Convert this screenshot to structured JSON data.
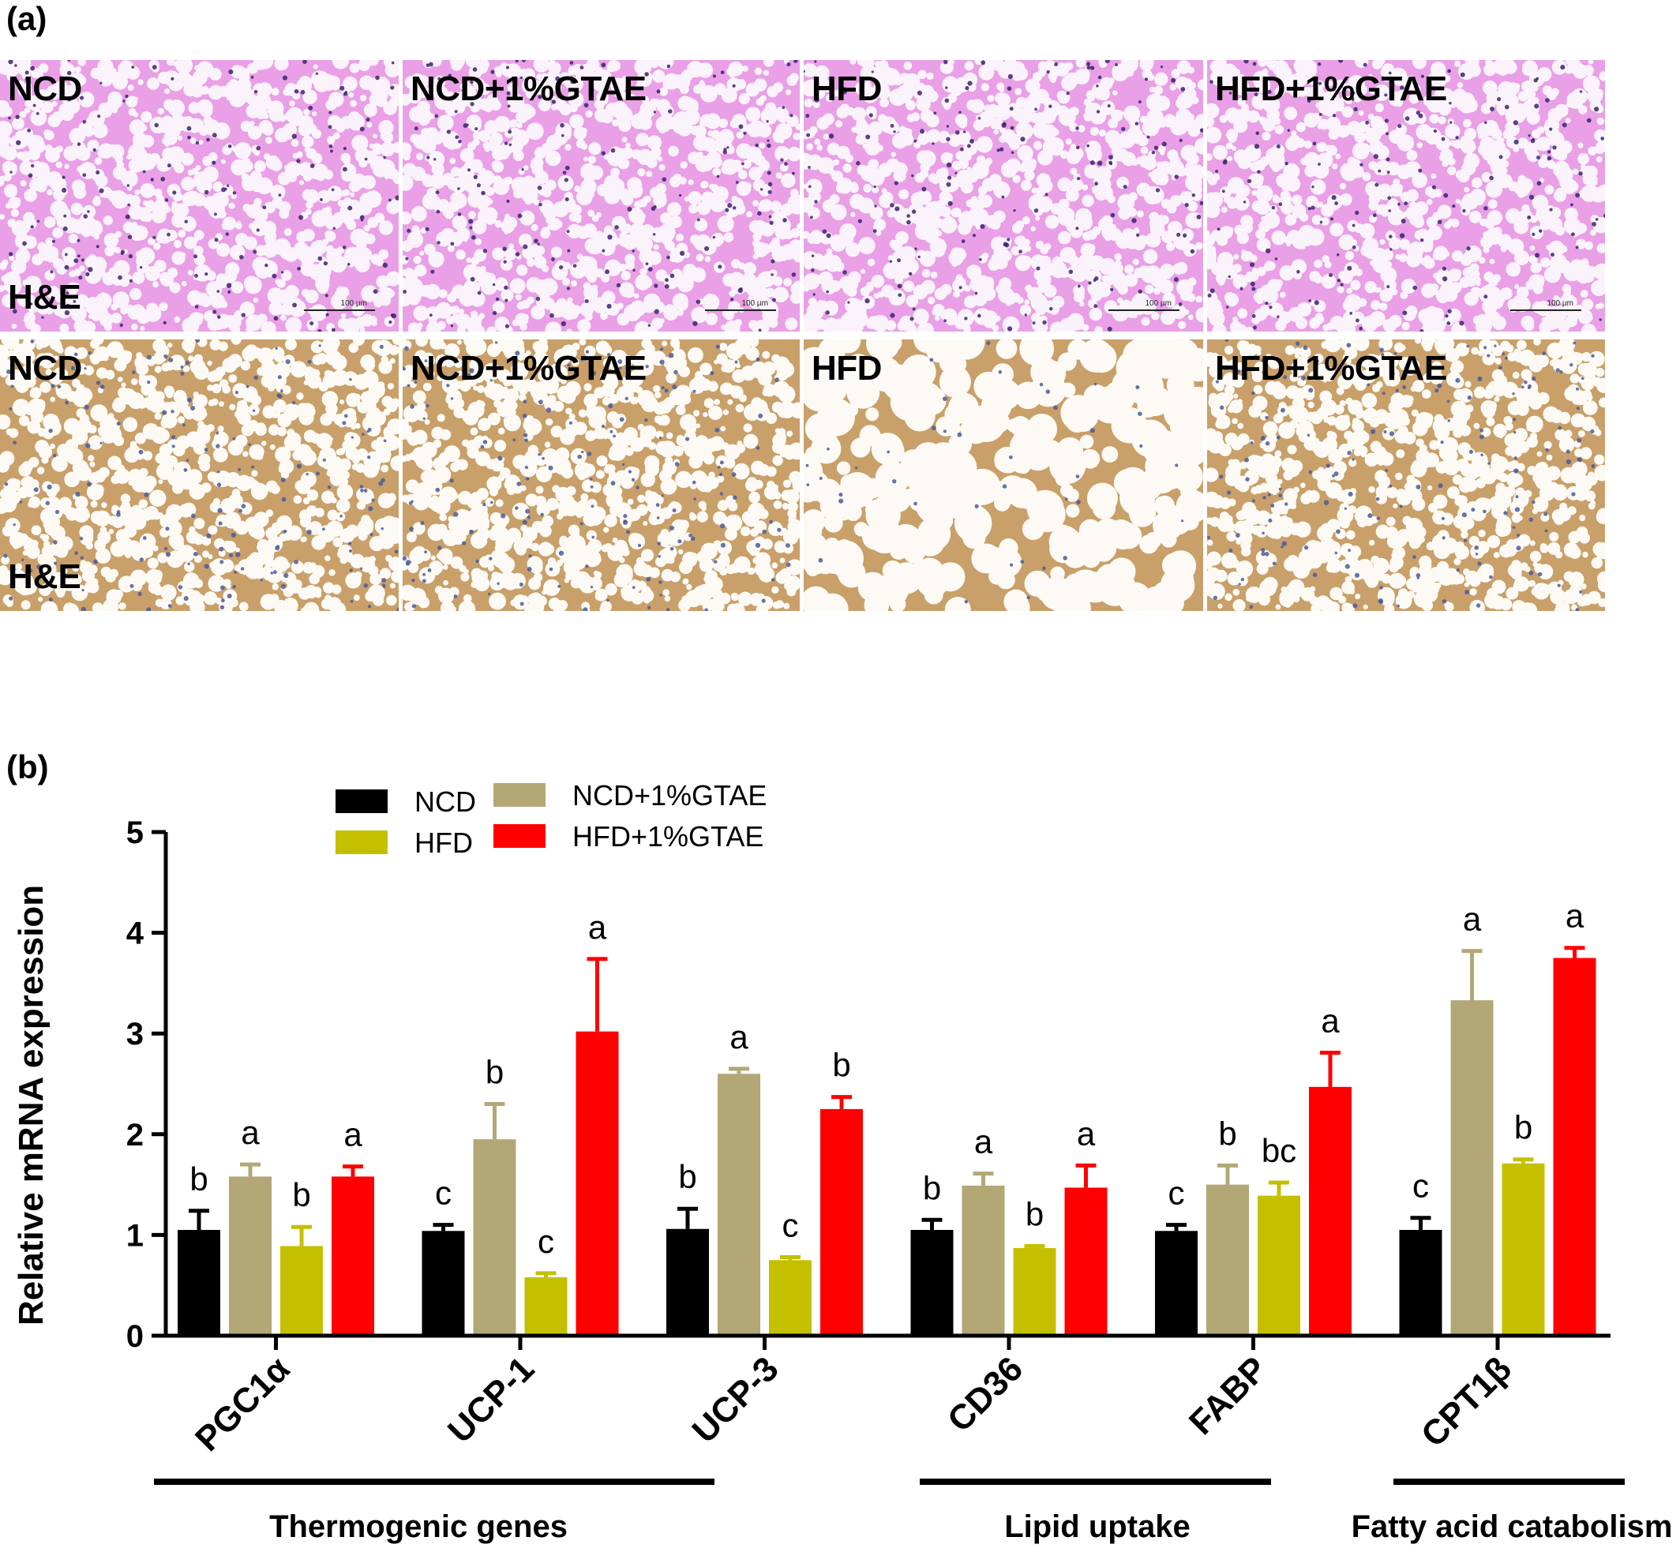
{
  "panel_a": {
    "label": "(a)",
    "rows": [
      {
        "stain": "H&E",
        "tint": "#e9a0e6",
        "cell_fill": "#fbf3fb",
        "nucleus": "#3a2270",
        "groups": [
          "NCD",
          "NCD+1%GTAE",
          "HFD",
          "HFD+1%GTAE"
        ],
        "scale_label": "100 µm"
      },
      {
        "stain": "H&E",
        "tint": "#c9a06a",
        "cell_fill": "#fdfaf5",
        "nucleus": "#4a5a9a",
        "groups": [
          "NCD",
          "NCD+1%GTAE",
          "HFD",
          "HFD+1%GTAE"
        ],
        "scale_label": ""
      }
    ]
  },
  "panel_b": {
    "label": "(b)"
  },
  "chart_data": {
    "type": "bar",
    "categories": [
      "PGC1α",
      "UCP-1",
      "UCP-3",
      "CD36",
      "FABP",
      "CPT1β"
    ],
    "ylabel": "Relative mRNA expression",
    "ylim": [
      0,
      5
    ],
    "yticks": [
      "0",
      "1",
      "2",
      "3",
      "4",
      "5"
    ],
    "legend_placement": "top-left",
    "series": [
      {
        "name": "NCD",
        "color": "#000000",
        "values": [
          1.05,
          1.04,
          1.06,
          1.05,
          1.04,
          1.05
        ],
        "errors": [
          0.19,
          0.06,
          0.2,
          0.1,
          0.06,
          0.12
        ],
        "letters": [
          "b",
          "c",
          "b",
          "b",
          "c",
          "c"
        ]
      },
      {
        "name": "NCD+1%GTAE",
        "color": "#b3a776",
        "values": [
          1.58,
          1.95,
          2.6,
          1.49,
          1.5,
          3.33
        ],
        "errors": [
          0.12,
          0.35,
          0.05,
          0.12,
          0.19,
          0.49
        ],
        "letters": [
          "a",
          "b",
          "a",
          "a",
          "b",
          "a"
        ]
      },
      {
        "name": "HFD",
        "color": "#c4c000",
        "values": [
          0.89,
          0.58,
          0.75,
          0.87,
          1.39,
          1.71
        ],
        "errors": [
          0.19,
          0.04,
          0.03,
          0.02,
          0.13,
          0.04
        ],
        "letters": [
          "b",
          "c",
          "c",
          "b",
          "bc",
          "b"
        ]
      },
      {
        "name": "HFD+1%GTAE",
        "color": "#ff0000",
        "values": [
          1.58,
          3.02,
          2.25,
          1.47,
          2.47,
          3.75
        ],
        "errors": [
          0.1,
          0.72,
          0.12,
          0.22,
          0.34,
          0.1
        ],
        "letters": [
          "a",
          "a",
          "b",
          "a",
          "a",
          "a"
        ]
      }
    ],
    "gene_groups": [
      {
        "label": "Thermogenic genes",
        "from": 0,
        "to": 2
      },
      {
        "label": "Lipid uptake",
        "from": 3,
        "to": 4
      },
      {
        "label": "Fatty acid catabolism",
        "from": 5,
        "to": 5
      }
    ]
  }
}
